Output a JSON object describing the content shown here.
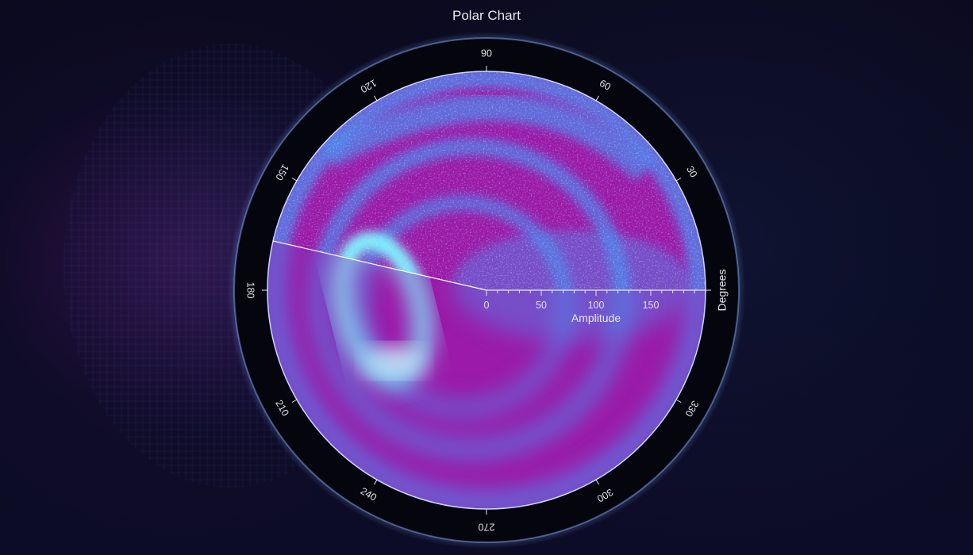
{
  "chart_data": {
    "type": "heatmap",
    "subtype": "polar",
    "title": "Polar Chart",
    "angular_axis": {
      "title": "Degrees",
      "ticks": [
        0,
        30,
        60,
        90,
        120,
        150,
        180,
        210,
        240,
        270,
        300,
        330
      ],
      "tick_labels": [
        "",
        "30",
        "60",
        "90",
        "120",
        "150",
        "180",
        "210",
        "240",
        "270",
        "300",
        "330"
      ],
      "range": [
        0,
        360
      ]
    },
    "radial_axis": {
      "title": "Amplitude",
      "ticks": [
        0,
        50,
        100,
        150
      ],
      "range": [
        0,
        200
      ]
    },
    "colors": {
      "low": "#9b1aa8",
      "mid": "#4a8cf0",
      "high": "#7ef2ff",
      "ring": "#05050e",
      "outline": "#c8d8ff"
    },
    "sectors": [
      {
        "name": "noisy",
        "from_deg": 0,
        "to_deg": 167
      },
      {
        "name": "smooth",
        "from_deg": 167,
        "to_deg": 360
      }
    ]
  }
}
